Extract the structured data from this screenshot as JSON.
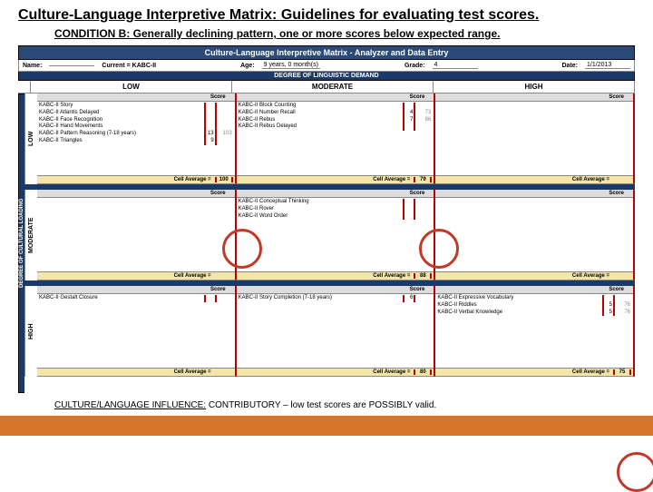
{
  "title": "Culture-Language Interpretive Matrix: Guidelines for evaluating test scores.",
  "subtitle": "CONDITION B: Generally declining pattern, one or more scores below expected range.",
  "banner": "Culture-Language Interpretive Matrix - Analyzer and Data Entry",
  "meta": {
    "name_lbl": "Name:",
    "name": "",
    "battery_lbl": "Current = KABC-II",
    "battery": "",
    "age_lbl": "Age:",
    "age": "9 years, 0 month(s)",
    "grade_lbl": "Grade:",
    "grade": "4",
    "date_lbl": "Date:",
    "date": "1/1/2013"
  },
  "degree_hdr": "DEGREE OF LINGUISTIC DEMAND",
  "side_hdr": "DEGREE OF CULTURAL LOADING",
  "cols": {
    "low": "LOW",
    "mod": "MODERATE",
    "high": "HIGH"
  },
  "rows": {
    "low": "LOW",
    "mod": "MODERATE",
    "high": "HIGH"
  },
  "score_lbl": "Score",
  "avg_lbl": "Cell Average =",
  "cells": {
    "ll": {
      "tests": [
        {
          "nm": "KABC-II Story",
          "s1": "",
          "s2": ""
        },
        {
          "nm": "KABC-II Atlantis Delayed",
          "s1": "",
          "s2": ""
        },
        {
          "nm": "KABC-II Face Recognition",
          "s1": "",
          "s2": ""
        },
        {
          "nm": "KABC-II Hand Movements",
          "s1": "",
          "s2": ""
        },
        {
          "nm": "KABC-II Pattern Reasoning (7-18 years)",
          "s1": "13",
          "s2": "103"
        },
        {
          "nm": "KABC-II Triangles",
          "s1": "9",
          "s2": ""
        }
      ],
      "avg": "100"
    },
    "lm": {
      "tests": [
        {
          "nm": "KABC-II Block Counting",
          "s1": "",
          "s2": ""
        },
        {
          "nm": "KABC-II Number Recall",
          "s1": "4",
          "s2": "73"
        },
        {
          "nm": "KABC-II Rebus",
          "s1": "7",
          "s2": "86"
        },
        {
          "nm": "KABC-II Rebus Delayed",
          "s1": "",
          "s2": ""
        }
      ],
      "avg": "79"
    },
    "lh": {
      "tests": [],
      "avg": ""
    },
    "ml": {
      "tests": [],
      "avg": ""
    },
    "mm": {
      "tests": [
        {
          "nm": "KABC-II Conceptual Thinking",
          "s1": "",
          "s2": ""
        },
        {
          "nm": "KABC-II Rover",
          "s1": "",
          "s2": ""
        },
        {
          "nm": "KABC-II Word Order",
          "s1": "",
          "s2": ""
        }
      ],
      "avg": "88"
    },
    "mh": {
      "tests": [],
      "avg": ""
    },
    "hl": {
      "tests": [
        {
          "nm": "KABC-II Gestalt Closure",
          "s1": "",
          "s2": ""
        }
      ],
      "avg": ""
    },
    "hm": {
      "tests": [
        {
          "nm": "KABC-II Story Completion (7-18 years)",
          "s1": "6",
          "s2": ""
        }
      ],
      "avg": "80"
    },
    "hh": {
      "tests": [
        {
          "nm": "KABC-II Expressive Vocabulary",
          "s1": "",
          "s2": ""
        },
        {
          "nm": "KABC-II Riddles",
          "s1": "5",
          "s2": "76"
        },
        {
          "nm": "KABC-II Verbal Knowledge",
          "s1": "5",
          "s2": "76"
        }
      ],
      "avg": "75"
    }
  },
  "footer": {
    "lead": "CULTURE/LANGUAGE INFLUENCE:",
    "rest": " CONTRIBUTORY – low test scores are POSSIBLY valid."
  },
  "colors": {
    "banner_bg": "#2a4a7a",
    "accent_border": "#b00",
    "avg_bg": "#f5e6a8",
    "circle": "#c0392b",
    "orange": "#d97528"
  }
}
